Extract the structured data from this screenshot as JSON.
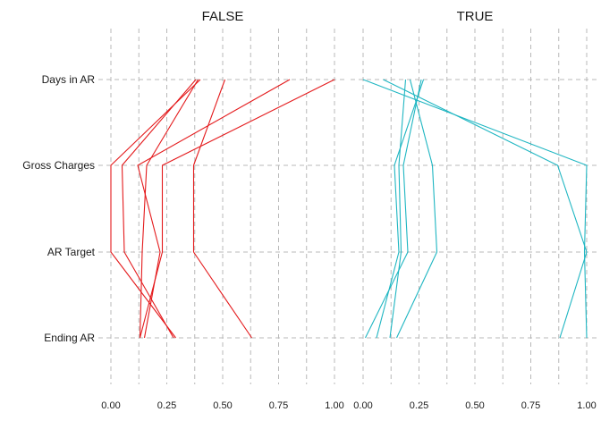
{
  "chart_data": {
    "type": "line",
    "variables": [
      "Days in AR",
      "Gross Charges",
      "AR Target",
      "Ending AR"
    ],
    "xlim": [
      0,
      1
    ],
    "x_ticks": [
      "0.00",
      "0.25",
      "0.50",
      "0.75",
      "1.00"
    ],
    "x_tick_values": [
      0,
      0.25,
      0.5,
      0.75,
      1
    ],
    "grid": true,
    "legend": "none",
    "panels": [
      {
        "title": "FALSE",
        "color": "#e41a1c",
        "series": [
          {
            "values": [
              0.4,
              0.0,
              0.0,
              0.29
            ]
          },
          {
            "values": [
              0.38,
              0.05,
              0.06,
              0.28
            ]
          },
          {
            "values": [
              0.51,
              0.37,
              0.37,
              0.63
            ]
          },
          {
            "values": [
              0.8,
              0.12,
              0.22,
              0.15
            ]
          },
          {
            "values": [
              1.0,
              0.23,
              0.23,
              0.13
            ]
          },
          {
            "values": [
              0.39,
              0.16,
              0.14,
              0.13
            ]
          }
        ]
      },
      {
        "title": "TRUE",
        "color": "#1fb6c2",
        "series": [
          {
            "values": [
              0.0,
              1.0,
              0.99,
              1.0
            ]
          },
          {
            "values": [
              0.09,
              0.87,
              1.0,
              0.88
            ]
          },
          {
            "values": [
              0.21,
              0.31,
              0.33,
              0.15
            ]
          },
          {
            "values": [
              0.26,
              0.18,
              0.2,
              0.01
            ]
          },
          {
            "values": [
              0.27,
              0.14,
              0.16,
              0.06
            ]
          },
          {
            "values": [
              0.19,
              0.16,
              0.17,
              0.12
            ]
          }
        ]
      }
    ]
  }
}
